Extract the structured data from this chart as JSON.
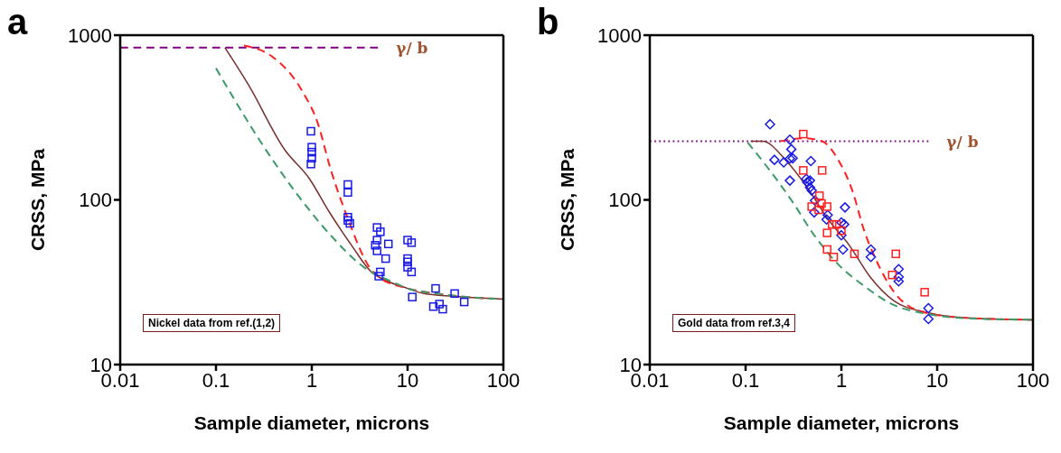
{
  "chart_data": [
    {
      "type": "scatter",
      "title": "a",
      "xlabel": "Sample diameter, microns",
      "ylabel": "CRSS, MPa",
      "log": "xy",
      "xlim": [
        0.01,
        100
      ],
      "ylim": [
        10,
        1000
      ],
      "xticks": [
        0.01,
        0.1,
        1,
        10,
        100
      ],
      "yticks": [
        10,
        100,
        1000
      ],
      "annotations": [
        "Nickel data from ref.(1,2)"
      ],
      "series": [
        {
          "type": "line",
          "name": "γ/ b",
          "color": "#800080",
          "line_style": "dashed",
          "x": [
            0.01,
            4.9
          ],
          "values": [
            840,
            840
          ]
        },
        {
          "type": "line",
          "color": "#7a2e2e",
          "line_style": "solid",
          "x": [
            0.124,
            0.22,
            0.52,
            0.94,
            1.55,
            2.6,
            4.3,
            5,
            10,
            14.8,
            30,
            100
          ],
          "values": [
            840,
            495,
            202,
            135,
            83,
            53,
            36,
            34,
            29,
            27,
            26,
            25
          ]
        },
        {
          "type": "line",
          "color": "#ff2020",
          "line_style": "dashed",
          "x": [
            0.196,
            0.39,
            0.8,
            1.16,
            1.55,
            2.38,
            4,
            5,
            10,
            20,
            50,
            100
          ],
          "values": [
            865,
            738,
            455,
            290,
            158,
            77,
            39,
            34,
            29,
            27,
            25.5,
            25
          ]
        },
        {
          "type": "line",
          "color": "#3c9a6a",
          "line_style": "dashed",
          "x": [
            0.1,
            0.3,
            0.8,
            1.7,
            3.5,
            7.1,
            10,
            20,
            50,
            100
          ],
          "values": [
            630,
            220,
            98,
            58,
            39,
            31.6,
            29,
            27,
            25.5,
            25
          ]
        },
        {
          "type": "scatter",
          "color": "#1a1ae6",
          "marker": "square",
          "x": [
            0.98,
            1,
            1,
            1,
            0.98,
            2.38,
            2.38,
            2.38,
            2.38,
            2.5,
            4.8,
            5.2,
            4.8,
            4.6,
            4.8,
            6.3,
            5.9,
            5.2,
            5,
            10,
            11,
            10,
            10,
            10,
            11,
            19.6,
            11.2,
            31,
            39,
            18.6,
            21.5,
            23.3
          ],
          "values": [
            261,
            209,
            195,
            179,
            165,
            124,
            111,
            78.5,
            75,
            72,
            68,
            64,
            57,
            53,
            49,
            54,
            44,
            36.5,
            34.4,
            57,
            55,
            44,
            42,
            39,
            36.5,
            29,
            25.7,
            27,
            24,
            22.5,
            23.3,
            21.7
          ]
        }
      ]
    },
    {
      "type": "scatter",
      "title": "b",
      "xlabel": "Sample diameter, microns",
      "ylabel": "CRSS, MPa",
      "log": "xy",
      "xlim": [
        0.01,
        100
      ],
      "ylim": [
        10,
        1000
      ],
      "xticks": [
        0.01,
        0.1,
        1,
        10,
        100
      ],
      "yticks": [
        10,
        100,
        1000
      ],
      "annotations": [
        "Gold data from ref.3,4"
      ],
      "series": [
        {
          "type": "line",
          "name": "γ/ b",
          "color": "#800080",
          "line_style": "dotted",
          "x": [
            0.01,
            8.1
          ],
          "values": [
            227,
            227
          ]
        },
        {
          "type": "line",
          "color": "#7a2e2e",
          "line_style": "solid",
          "x": [
            0.113,
            0.15,
            0.27,
            0.44,
            0.73,
            1.21,
            2,
            3.56,
            7.8,
            20,
            100
          ],
          "values": [
            227,
            227,
            171,
            119,
            76,
            53,
            34,
            24.3,
            20.7,
            19.2,
            18.7
          ]
        },
        {
          "type": "line",
          "color": "#ff2020",
          "line_style": "dashed",
          "x": [
            0.23,
            0.41,
            0.63,
            0.91,
            1.3,
            1.73,
            2.31,
            3.56,
            6.8,
            20,
            100
          ],
          "values": [
            227,
            237,
            227,
            178,
            114,
            65,
            43,
            27.5,
            21,
            19.2,
            18.7
          ]
        },
        {
          "type": "line",
          "color": "#3c9a6a",
          "line_style": "dashed",
          "x": [
            0.105,
            0.17,
            0.31,
            0.51,
            0.91,
            1.73,
            3.3,
            7.8,
            20,
            100
          ],
          "values": [
            223,
            157,
            97,
            62,
            41,
            30,
            23.4,
            20.3,
            19.1,
            18.7
          ]
        },
        {
          "type": "scatter",
          "color": "#1a1ae6",
          "marker": "diamond",
          "x": [
            0.18,
            0.29,
            0.3,
            0.29,
            0.31,
            0.2,
            0.25,
            0.48,
            0.29,
            0.43,
            0.44,
            0.47,
            0.47,
            0.49,
            0.53,
            0.52,
            0.72,
            0.7,
            1.09,
            1,
            1.07,
            1,
            1.04,
            2.03,
            2.03,
            3.96,
            3.96,
            3.96,
            8.1,
            8.1
          ],
          "values": [
            288,
            232,
            203,
            178,
            179,
            175,
            169,
            172,
            131,
            134,
            128,
            131,
            119,
            114,
            99,
            84,
            81,
            76,
            90,
            73,
            71,
            61,
            50,
            50,
            45,
            38,
            34,
            32,
            22,
            18.9
          ]
        },
        {
          "type": "scatter",
          "color": "#ff2020",
          "marker": "square",
          "x": [
            0.4,
            0.4,
            0.63,
            0.59,
            0.49,
            0.62,
            0.71,
            0.58,
            0.8,
            0.89,
            1,
            0.71,
            0.71,
            0.83,
            1.37,
            3.7,
            3.4,
            7.4
          ],
          "values": [
            251,
            151,
            151,
            106,
            91,
            95,
            91,
            87,
            71,
            71,
            65,
            63,
            50,
            45,
            47,
            47,
            35,
            27.5
          ]
        }
      ]
    }
  ]
}
